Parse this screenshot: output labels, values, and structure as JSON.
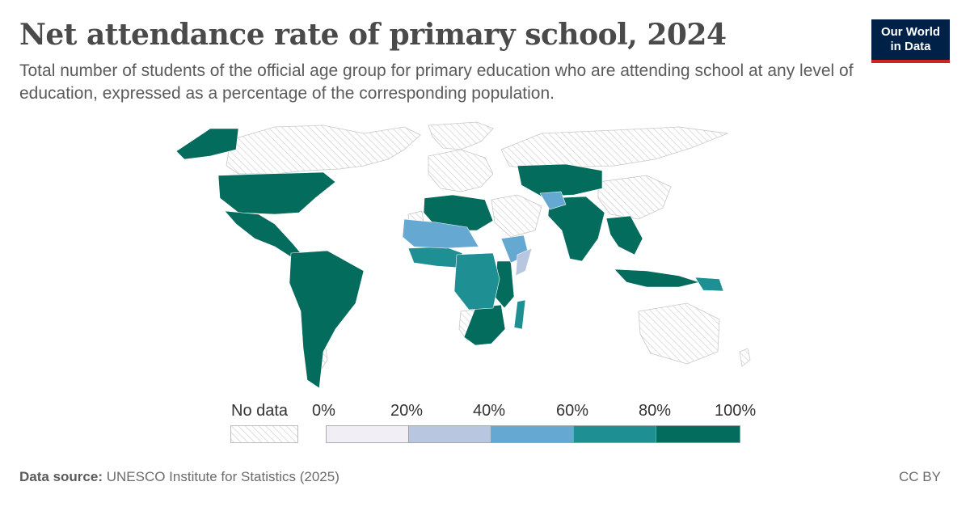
{
  "header": {
    "title": "Net attendance rate of primary school, 2024",
    "subtitle": "Total number of students of the official age group for primary education who are attending school at any level of education, expressed as a percentage of the corresponding population."
  },
  "logo": {
    "line1": "Our World",
    "line2": "in Data"
  },
  "legend": {
    "no_data_label": "No data",
    "bins": [
      {
        "from": "0%",
        "to": "20%",
        "color": "#f2eef6"
      },
      {
        "from": "20%",
        "to": "40%",
        "color": "#b8c6e0"
      },
      {
        "from": "40%",
        "to": "60%",
        "color": "#65a8d1"
      },
      {
        "from": "60%",
        "to": "80%",
        "color": "#1e9094"
      },
      {
        "from": "80%",
        "to": "100%",
        "color": "#046c5c"
      }
    ],
    "tick_labels": [
      "0%",
      "20%",
      "40%",
      "60%",
      "80%",
      "100%"
    ]
  },
  "colors": {
    "no_data_stroke": "#d9d9d9",
    "very_high": "#046c5c",
    "high": "#1e9094",
    "mid": "#65a8d1",
    "low": "#b8c6e0"
  },
  "footer": {
    "source_label": "Data source:",
    "source_text": "UNESCO Institute for Statistics (2025)",
    "license": "CC BY"
  }
}
